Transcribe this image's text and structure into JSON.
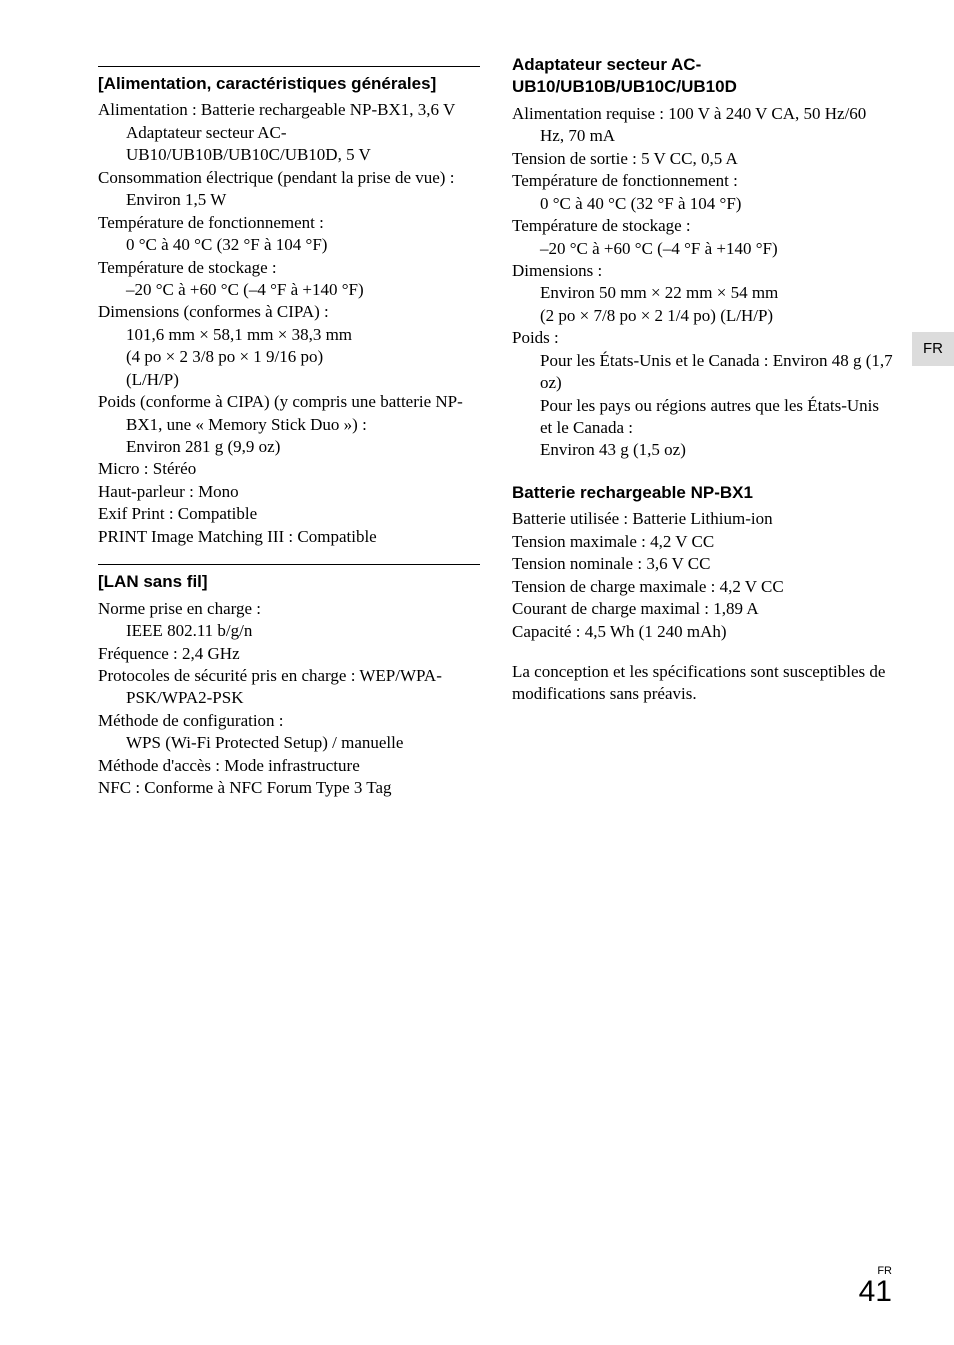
{
  "tab": "FR",
  "page": {
    "label": "FR",
    "number": "41"
  },
  "left": {
    "sec1": {
      "heading": "[Alimentation, caractéristiques générales]",
      "lines": [
        {
          "t": "Alimentation : Batterie rechargeable NP-BX1, 3,6 V",
          "cls": "spec-line"
        },
        {
          "t": "Adaptateur secteur AC-UB10/UB10B/UB10C/UB10D, 5 V",
          "cls": "spec-cont"
        },
        {
          "t": "Consommation électrique (pendant la prise de vue) : Environ 1,5 W",
          "cls": "spec-line"
        },
        {
          "t": "Température de fonctionnement :",
          "cls": "spec-line"
        },
        {
          "t": "0 °C à 40 °C (32 °F à 104 °F)",
          "cls": "spec-cont"
        },
        {
          "t": "Température de stockage :",
          "cls": "spec-line"
        },
        {
          "t": "–20 °C à +60 °C (–4 °F à +140 °F)",
          "cls": "spec-cont"
        },
        {
          "t": "Dimensions (conformes à CIPA) :",
          "cls": "spec-line"
        },
        {
          "t": "101,6 mm × 58,1 mm × 38,3 mm",
          "cls": "spec-cont"
        },
        {
          "t": "(4 po × 2 3/8 po × 1 9/16 po)",
          "cls": "spec-cont"
        },
        {
          "t": "(L/H/P)",
          "cls": "spec-cont"
        },
        {
          "t": "Poids (conforme à CIPA) (y compris une batterie NP-BX1, une « Memory Stick Duo ») :",
          "cls": "spec-line"
        },
        {
          "t": "Environ 281 g (9,9 oz)",
          "cls": "spec-cont"
        },
        {
          "t": "Micro : Stéréo",
          "cls": "spec-line"
        },
        {
          "t": "Haut-parleur : Mono",
          "cls": "spec-line"
        },
        {
          "t": "Exif Print : Compatible",
          "cls": "spec-line"
        },
        {
          "t": "PRINT Image Matching III : Compatible",
          "cls": "spec-line"
        }
      ]
    },
    "sec2": {
      "heading": "[LAN sans fil]",
      "lines": [
        {
          "t": "Norme prise en charge :",
          "cls": "spec-line"
        },
        {
          "t": "IEEE 802.11 b/g/n",
          "cls": "spec-cont"
        },
        {
          "t": "Fréquence : 2,4 GHz",
          "cls": "spec-line"
        },
        {
          "t": "Protocoles de sécurité pris en charge : WEP/WPA-PSK/WPA2-PSK",
          "cls": "spec-line"
        },
        {
          "t": "Méthode de configuration :",
          "cls": "spec-line"
        },
        {
          "t": "WPS (Wi-Fi Protected Setup) / manuelle",
          "cls": "spec-cont"
        },
        {
          "t": "Méthode d'accès : Mode infrastructure",
          "cls": "spec-line"
        },
        {
          "t": "NFC : Conforme à NFC Forum Type 3 Tag",
          "cls": "spec-line"
        }
      ]
    }
  },
  "right": {
    "sec1": {
      "heading": "Adaptateur secteur AC-UB10/UB10B/UB10C/UB10D",
      "lines": [
        {
          "t": "Alimentation requise : 100 V à 240 V CA, 50 Hz/60 Hz, 70 mA",
          "cls": "spec-line"
        },
        {
          "t": "Tension de sortie : 5 V CC, 0,5 A",
          "cls": "spec-line"
        },
        {
          "t": "Température de fonctionnement :",
          "cls": "spec-line"
        },
        {
          "t": "0 °C à 40 °C (32 °F à 104 °F)",
          "cls": "spec-cont"
        },
        {
          "t": "Température de stockage :",
          "cls": "spec-line"
        },
        {
          "t": "–20 °C à +60 °C (–4 °F à +140 °F)",
          "cls": "spec-cont"
        },
        {
          "t": "Dimensions :",
          "cls": "spec-line"
        },
        {
          "t": "Environ 50 mm × 22 mm × 54 mm",
          "cls": "spec-cont"
        },
        {
          "t": "(2 po × 7/8 po × 2 1/4 po) (L/H/P)",
          "cls": "spec-cont"
        },
        {
          "t": "Poids :",
          "cls": "spec-line"
        },
        {
          "t": "Pour les États-Unis et le Canada : Environ 48 g (1,7 oz)",
          "cls": "spec-cont"
        },
        {
          "t": "Pour les pays ou régions autres que les États-Unis et le Canada :",
          "cls": "spec-cont"
        },
        {
          "t": "Environ 43 g (1,5 oz)",
          "cls": "spec-cont"
        }
      ]
    },
    "sec2": {
      "heading": "Batterie rechargeable NP-BX1",
      "lines": [
        {
          "t": "Batterie utilisée : Batterie Lithium-ion",
          "cls": "spec-line"
        },
        {
          "t": "Tension maximale : 4,2 V CC",
          "cls": "spec-line"
        },
        {
          "t": "Tension nominale : 3,6 V CC",
          "cls": "spec-line"
        },
        {
          "t": "Tension de charge maximale : 4,2 V CC",
          "cls": "spec-line"
        },
        {
          "t": "Courant de charge maximal : 1,89 A",
          "cls": "spec-line"
        },
        {
          "t": "Capacité : 4,5 Wh (1 240 mAh)",
          "cls": "spec-line"
        }
      ]
    },
    "closing": "La conception et les spécifications sont susceptibles de modifications sans préavis."
  }
}
